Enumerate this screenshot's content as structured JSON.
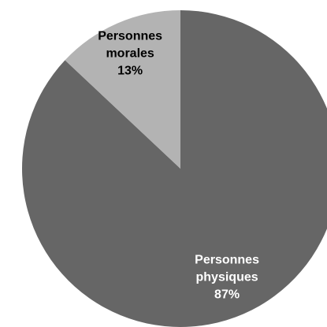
{
  "chart_data": {
    "type": "pie",
    "title": "",
    "slices": [
      {
        "label_lines": [
          "Personnes",
          "physiques"
        ],
        "percent_text": "87%",
        "value": 87,
        "color": "#666666",
        "label_color": "light"
      },
      {
        "label_lines": [
          "Personnes",
          "morales"
        ],
        "percent_text": "13%",
        "value": 13,
        "color": "#b3b3b3",
        "label_color": "dark"
      }
    ],
    "start_angle_deg": 0,
    "direction": "clockwise",
    "legend": "none"
  }
}
